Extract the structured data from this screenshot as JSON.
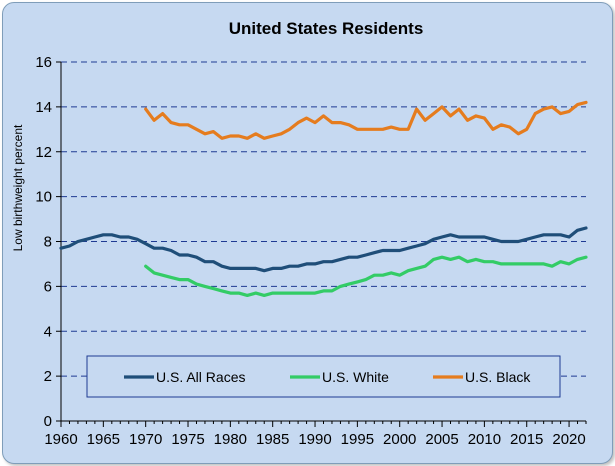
{
  "chart_data": {
    "type": "line",
    "title": "United States Residents",
    "xlabel": "",
    "ylabel": "Low birthweight  percent",
    "xlim": [
      1960,
      2022
    ],
    "ylim": [
      0,
      16
    ],
    "xticks": [
      1960,
      1965,
      1970,
      1975,
      1980,
      1985,
      1990,
      1995,
      2000,
      2005,
      2010,
      2015,
      2020
    ],
    "yticks": [
      0,
      2,
      4,
      6,
      8,
      10,
      12,
      14,
      16
    ],
    "grid": "horizontal dashed",
    "legend_position": "bottom",
    "series": [
      {
        "name": "U.S. All Races",
        "color": "#1f4e79",
        "x": [
          1960,
          1961,
          1962,
          1963,
          1964,
          1965,
          1966,
          1967,
          1968,
          1969,
          1970,
          1971,
          1972,
          1973,
          1974,
          1975,
          1976,
          1977,
          1978,
          1979,
          1980,
          1981,
          1982,
          1983,
          1984,
          1985,
          1986,
          1987,
          1988,
          1989,
          1990,
          1991,
          1992,
          1993,
          1994,
          1995,
          1996,
          1997,
          1998,
          1999,
          2000,
          2001,
          2002,
          2003,
          2004,
          2005,
          2006,
          2007,
          2008,
          2009,
          2010,
          2011,
          2012,
          2013,
          2014,
          2015,
          2016,
          2017,
          2018,
          2019,
          2020,
          2021,
          2022
        ],
        "y": [
          7.7,
          7.8,
          8.0,
          8.1,
          8.2,
          8.3,
          8.3,
          8.2,
          8.2,
          8.1,
          7.9,
          7.7,
          7.7,
          7.6,
          7.4,
          7.4,
          7.3,
          7.1,
          7.1,
          6.9,
          6.8,
          6.8,
          6.8,
          6.8,
          6.7,
          6.8,
          6.8,
          6.9,
          6.9,
          7.0,
          7.0,
          7.1,
          7.1,
          7.2,
          7.3,
          7.3,
          7.4,
          7.5,
          7.6,
          7.6,
          7.6,
          7.7,
          7.8,
          7.9,
          8.1,
          8.2,
          8.3,
          8.2,
          8.2,
          8.2,
          8.2,
          8.1,
          8.0,
          8.0,
          8.0,
          8.1,
          8.2,
          8.3,
          8.3,
          8.3,
          8.2,
          8.5,
          8.6
        ]
      },
      {
        "name": "U.S. White",
        "color": "#33cc66",
        "x": [
          1970,
          1971,
          1972,
          1973,
          1974,
          1975,
          1976,
          1977,
          1978,
          1979,
          1980,
          1981,
          1982,
          1983,
          1984,
          1985,
          1986,
          1987,
          1988,
          1989,
          1990,
          1991,
          1992,
          1993,
          1994,
          1995,
          1996,
          1997,
          1998,
          1999,
          2000,
          2001,
          2002,
          2003,
          2004,
          2005,
          2006,
          2007,
          2008,
          2009,
          2010,
          2011,
          2012,
          2013,
          2014,
          2015,
          2016,
          2017,
          2018,
          2019,
          2020,
          2021,
          2022
        ],
        "y": [
          6.9,
          6.6,
          6.5,
          6.4,
          6.3,
          6.3,
          6.1,
          6.0,
          5.9,
          5.8,
          5.7,
          5.7,
          5.6,
          5.7,
          5.6,
          5.7,
          5.7,
          5.7,
          5.7,
          5.7,
          5.7,
          5.8,
          5.8,
          6.0,
          6.1,
          6.2,
          6.3,
          6.5,
          6.5,
          6.6,
          6.5,
          6.7,
          6.8,
          6.9,
          7.2,
          7.3,
          7.2,
          7.3,
          7.1,
          7.2,
          7.1,
          7.1,
          7.0,
          7.0,
          7.0,
          7.0,
          7.0,
          7.0,
          6.9,
          7.1,
          7.0,
          7.2,
          7.3
        ]
      },
      {
        "name": "U.S. Black",
        "color": "#e57c1e",
        "x": [
          1970,
          1971,
          1972,
          1973,
          1974,
          1975,
          1976,
          1977,
          1978,
          1979,
          1980,
          1981,
          1982,
          1983,
          1984,
          1985,
          1986,
          1987,
          1988,
          1989,
          1990,
          1991,
          1992,
          1993,
          1994,
          1995,
          1996,
          1997,
          1998,
          1999,
          2000,
          2001,
          2002,
          2003,
          2004,
          2005,
          2006,
          2007,
          2008,
          2009,
          2010,
          2011,
          2012,
          2013,
          2014,
          2015,
          2016,
          2017,
          2018,
          2019,
          2020,
          2021,
          2022
        ],
        "y": [
          13.9,
          13.4,
          13.7,
          13.3,
          13.2,
          13.2,
          13.0,
          12.8,
          12.9,
          12.6,
          12.7,
          12.7,
          12.6,
          12.8,
          12.6,
          12.7,
          12.8,
          13.0,
          13.3,
          13.5,
          13.3,
          13.6,
          13.3,
          13.3,
          13.2,
          13.0,
          13.0,
          13.0,
          13.0,
          13.1,
          13.0,
          13.0,
          13.9,
          13.4,
          13.7,
          14.0,
          13.6,
          13.9,
          13.4,
          13.6,
          13.5,
          13.0,
          13.2,
          13.1,
          12.8,
          13.0,
          13.7,
          13.9,
          14.0,
          13.7,
          13.8,
          14.1,
          14.2
        ]
      }
    ]
  }
}
